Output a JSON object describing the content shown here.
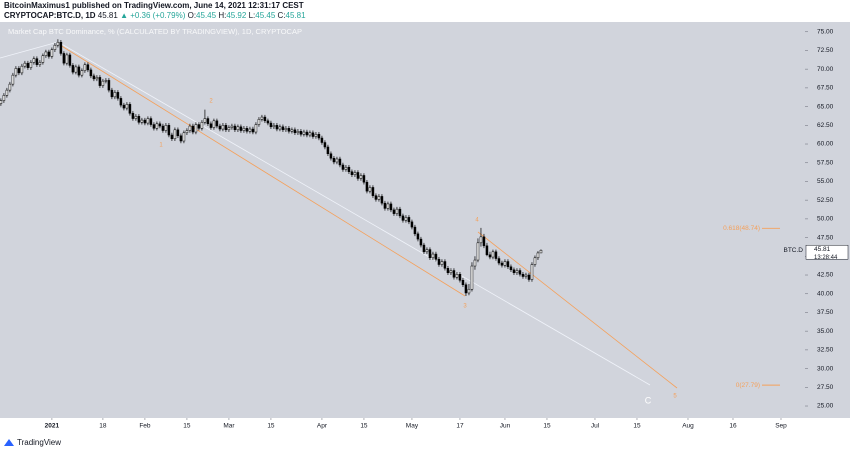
{
  "header": {
    "author_line": "BitcoinMaximus1 published on TradingView.com, June 14, 2021 12:31:17 CEST",
    "symbol": "CRYPTOCAP:BTC.D, 1D",
    "price": "45.81",
    "change": "▲ +0.36 (+0.79%)",
    "ohlc": [
      {
        "key": "O:",
        "value": "45.45"
      },
      {
        "key": "H:",
        "value": "45.92"
      },
      {
        "key": "L:",
        "value": "45.45"
      },
      {
        "key": "C:",
        "value": "45.81"
      }
    ]
  },
  "footer": {
    "brand": "TradingView"
  },
  "chart_data": {
    "type": "candlestick",
    "title": "Market Cap BTC Dominance, % (CALCULATED BY TRADINGVIEW), 1D, CRYPTOCAP",
    "up_color": "#ffffff",
    "down_color": "#000000",
    "wick_color": "#000000",
    "background": "#d1d4dc",
    "xlim": [
      -17.3,
      251
    ],
    "ylim": [
      23.8,
      76.3
    ],
    "xticks": [
      {
        "value": 0,
        "label": "2021"
      },
      {
        "value": 17,
        "label": "18"
      },
      {
        "value": 31,
        "label": "Feb"
      },
      {
        "value": 45,
        "label": "15"
      },
      {
        "value": 59,
        "label": "Mar"
      },
      {
        "value": 73,
        "label": "15"
      },
      {
        "value": 90,
        "label": "Apr"
      },
      {
        "value": 104,
        "label": "15"
      },
      {
        "value": 120,
        "label": "May"
      },
      {
        "value": 136,
        "label": "17"
      },
      {
        "value": 151,
        "label": "Jun"
      },
      {
        "value": 165,
        "label": "15"
      },
      {
        "value": 181,
        "label": "Jul"
      },
      {
        "value": 195,
        "label": "15"
      },
      {
        "value": 212,
        "label": "Aug"
      },
      {
        "value": 227,
        "label": "16"
      },
      {
        "value": 243,
        "label": "Sep"
      }
    ],
    "yticks": [
      {
        "value": 25,
        "label": "25.00"
      },
      {
        "value": 27.5,
        "label": "27.50"
      },
      {
        "value": 30,
        "label": "30.00"
      },
      {
        "value": 32.5,
        "label": "32.50"
      },
      {
        "value": 35,
        "label": "35.00"
      },
      {
        "value": 37.5,
        "label": "37.50"
      },
      {
        "value": 40,
        "label": "40.00"
      },
      {
        "value": 42.5,
        "label": "42.50"
      },
      {
        "value": 45,
        "label": "45.00"
      },
      {
        "value": 47.5,
        "label": "47.50"
      },
      {
        "value": 50,
        "label": "50.00"
      },
      {
        "value": 52.5,
        "label": "52.50"
      },
      {
        "value": 55,
        "label": "55.00"
      },
      {
        "value": 57.5,
        "label": "57.50"
      },
      {
        "value": 60,
        "label": "60.00"
      },
      {
        "value": 62.5,
        "label": "62.50"
      },
      {
        "value": 65,
        "label": "65.00"
      },
      {
        "value": 67.5,
        "label": "67.50"
      },
      {
        "value": 70,
        "label": "70.00"
      },
      {
        "value": 72.5,
        "label": "72.50"
      },
      {
        "value": 75,
        "label": "75.00"
      }
    ],
    "x": [
      -17,
      -16,
      -15,
      -14,
      -13,
      -12,
      -11,
      -10,
      -9,
      -8,
      -7,
      -6,
      -5,
      -4,
      -3,
      -2,
      -1,
      0,
      1,
      2,
      3,
      4,
      5,
      6,
      7,
      8,
      9,
      10,
      11,
      12,
      13,
      14,
      15,
      16,
      17,
      18,
      19,
      20,
      21,
      22,
      23,
      24,
      25,
      26,
      27,
      28,
      29,
      30,
      31,
      32,
      33,
      34,
      35,
      36,
      37,
      38,
      39,
      40,
      41,
      42,
      43,
      44,
      45,
      46,
      47,
      48,
      49,
      50,
      51,
      52,
      53,
      54,
      55,
      56,
      57,
      58,
      59,
      60,
      61,
      62,
      63,
      64,
      65,
      66,
      67,
      68,
      69,
      70,
      71,
      72,
      73,
      74,
      75,
      76,
      77,
      78,
      79,
      80,
      81,
      82,
      83,
      84,
      85,
      86,
      87,
      88,
      89,
      90,
      91,
      92,
      93,
      94,
      95,
      96,
      97,
      98,
      99,
      100,
      101,
      102,
      103,
      104,
      105,
      106,
      107,
      108,
      109,
      110,
      111,
      112,
      113,
      114,
      115,
      116,
      117,
      118,
      119,
      120,
      121,
      122,
      123,
      124,
      125,
      126,
      127,
      128,
      129,
      130,
      131,
      132,
      133,
      134,
      135,
      136,
      137,
      138,
      139,
      140,
      141,
      142,
      143,
      144,
      145,
      146,
      147,
      148,
      149,
      150,
      151,
      152,
      153,
      154,
      155,
      156,
      157,
      158,
      159,
      160,
      161,
      162,
      163
    ],
    "open": [
      65.4,
      65.8,
      66.5,
      67.2,
      68.0,
      69.2,
      70.1,
      69.5,
      70.4,
      70.8,
      70.2,
      70.9,
      71.4,
      70.6,
      70.9,
      71.8,
      72.3,
      71.7,
      72.6,
      73.2,
      73.6,
      72.1,
      70.8,
      71.9,
      70.5,
      69.6,
      70.3,
      69.2,
      69.8,
      70.6,
      69.9,
      69.1,
      68.7,
      68.9,
      67.8,
      68.4,
      68.5,
      67.2,
      66.3,
      66.9,
      66.1,
      65.2,
      64.8,
      65.3,
      64.1,
      63.4,
      63.7,
      62.9,
      63.2,
      62.8,
      63.4,
      62.6,
      62.1,
      62.7,
      62.4,
      61.8,
      62.5,
      61.2,
      60.7,
      61.9,
      61.1,
      60.4,
      61.5,
      61.8,
      62.4,
      61.6,
      62.6,
      62.1,
      62.9,
      63.4,
      62.7,
      62.2,
      63.1,
      62.4,
      62.0,
      62.5,
      61.9,
      62.2,
      62.4,
      61.9,
      62.3,
      61.8,
      62.1,
      61.7,
      62.0,
      61.6,
      62.6,
      63.3,
      63.6,
      63.1,
      62.8,
      62.3,
      62.5,
      62.0,
      62.3,
      61.9,
      62.1,
      61.7,
      61.9,
      61.5,
      61.7,
      61.3,
      61.6,
      61.2,
      61.5,
      61.0,
      61.3,
      60.8,
      60.2,
      59.6,
      58.7,
      58.1,
      57.6,
      58.0,
      57.2,
      56.6,
      56.9,
      56.3,
      55.9,
      56.2,
      55.4,
      55.8,
      54.9,
      53.7,
      54.2,
      53.1,
      52.6,
      53.0,
      52.1,
      51.4,
      52.0,
      51.2,
      50.7,
      51.3,
      50.4,
      49.8,
      50.2,
      49.6,
      48.9,
      48.0,
      47.3,
      46.5,
      45.6,
      45.9,
      44.8,
      45.3,
      44.6,
      43.9,
      44.3,
      43.4,
      42.8,
      43.1,
      42.2,
      42.6,
      41.8,
      41.2,
      40.1,
      40.6,
      43.7,
      44.5,
      46.8,
      47.6,
      46.4,
      45.2,
      44.9,
      45.6,
      44.7,
      44.1,
      43.8,
      44.3,
      43.6,
      43.2,
      42.8,
      43.1,
      42.6,
      42.3,
      42.5,
      41.9,
      43.9,
      44.8,
      45.45
    ],
    "high": [
      66.1,
      66.8,
      67.5,
      68.3,
      69.5,
      70.4,
      70.4,
      70.7,
      71.1,
      71.1,
      71.2,
      71.7,
      71.7,
      71.2,
      72.1,
      72.6,
      72.6,
      72.9,
      73.5,
      74.0,
      73.9,
      72.4,
      72.2,
      72.2,
      70.8,
      70.6,
      70.6,
      70.1,
      70.9,
      70.9,
      70.2,
      69.4,
      69.2,
      69.2,
      68.7,
      68.8,
      68.8,
      67.5,
      67.2,
      67.2,
      66.4,
      65.5,
      65.6,
      65.6,
      64.4,
      64.0,
      64.0,
      63.5,
      63.5,
      63.7,
      63.7,
      62.9,
      63.0,
      63.0,
      62.7,
      62.8,
      62.8,
      61.5,
      62.2,
      62.2,
      61.4,
      61.8,
      62.1,
      62.7,
      62.7,
      62.9,
      62.9,
      63.2,
      64.6,
      63.7,
      63.0,
      63.4,
      63.4,
      62.7,
      62.8,
      62.8,
      62.5,
      62.7,
      62.7,
      62.6,
      62.6,
      62.4,
      62.4,
      62.3,
      62.3,
      62.9,
      63.6,
      63.9,
      63.9,
      63.4,
      63.1,
      62.8,
      62.8,
      62.6,
      62.6,
      62.4,
      62.4,
      62.2,
      62.2,
      62.0,
      62.0,
      61.9,
      61.9,
      61.8,
      61.8,
      61.6,
      61.6,
      61.1,
      60.5,
      59.9,
      59.0,
      58.4,
      58.3,
      58.3,
      57.5,
      57.2,
      57.2,
      56.6,
      56.5,
      56.5,
      56.1,
      56.1,
      55.2,
      54.5,
      54.5,
      53.4,
      53.3,
      53.3,
      52.4,
      52.3,
      52.3,
      51.5,
      51.6,
      51.6,
      50.7,
      50.5,
      50.5,
      49.9,
      49.2,
      48.3,
      47.6,
      46.8,
      46.2,
      46.2,
      45.6,
      45.6,
      44.9,
      44.6,
      44.6,
      43.7,
      43.4,
      43.4,
      42.9,
      42.9,
      42.1,
      41.5,
      41.3,
      44.2,
      45.0,
      47.4,
      48.8,
      48.0,
      46.8,
      45.6,
      45.9,
      45.9,
      45.0,
      44.4,
      44.6,
      44.6,
      43.9,
      43.5,
      43.4,
      43.4,
      42.9,
      42.8,
      42.8,
      44.2,
      45.1,
      45.7,
      45.92
    ],
    "low": [
      65.1,
      65.5,
      66.2,
      66.9,
      67.7,
      68.9,
      69.2,
      69.2,
      70.1,
      69.9,
      69.9,
      70.6,
      70.3,
      70.3,
      70.6,
      71.5,
      71.4,
      71.4,
      72.3,
      72.9,
      71.8,
      70.5,
      70.5,
      70.2,
      69.3,
      69.3,
      68.9,
      68.9,
      69.5,
      69.6,
      68.8,
      68.4,
      68.4,
      67.5,
      67.5,
      68.1,
      66.9,
      66.0,
      66.0,
      65.8,
      64.9,
      64.5,
      64.5,
      63.8,
      63.1,
      63.1,
      62.6,
      62.6,
      62.5,
      62.5,
      62.3,
      61.8,
      61.8,
      62.1,
      61.5,
      61.5,
      60.9,
      60.4,
      60.4,
      60.8,
      60.1,
      60.1,
      61.2,
      61.5,
      61.3,
      61.3,
      61.8,
      61.8,
      62.6,
      62.4,
      61.9,
      61.9,
      62.1,
      61.7,
      61.7,
      61.6,
      61.6,
      61.9,
      61.6,
      61.6,
      61.5,
      61.5,
      61.4,
      61.4,
      61.3,
      61.3,
      62.3,
      63.0,
      62.8,
      62.5,
      62.0,
      62.0,
      61.7,
      61.7,
      61.6,
      61.6,
      61.4,
      61.4,
      61.2,
      61.2,
      61.0,
      61.0,
      60.9,
      60.9,
      60.7,
      60.7,
      60.5,
      59.9,
      59.3,
      58.4,
      57.8,
      57.3,
      57.3,
      56.9,
      56.3,
      56.3,
      56.0,
      55.6,
      55.6,
      55.1,
      55.1,
      54.6,
      53.4,
      53.4,
      52.8,
      52.3,
      52.3,
      51.8,
      51.1,
      51.1,
      50.9,
      50.4,
      50.4,
      50.1,
      49.5,
      49.5,
      49.3,
      48.6,
      47.7,
      47.0,
      46.2,
      45.3,
      45.3,
      44.5,
      44.5,
      44.3,
      43.6,
      43.6,
      43.1,
      42.5,
      42.5,
      41.9,
      41.9,
      41.5,
      40.9,
      39.7,
      39.8,
      40.3,
      43.2,
      44.2,
      46.3,
      46.1,
      45.0,
      44.6,
      44.6,
      44.4,
      43.8,
      43.5,
      43.5,
      43.3,
      42.9,
      42.5,
      42.5,
      42.3,
      42.0,
      42.0,
      41.6,
      41.6,
      43.6,
      44.5,
      45.45
    ],
    "close": [
      65.8,
      66.5,
      67.2,
      68.0,
      69.2,
      70.1,
      69.5,
      70.4,
      70.8,
      70.2,
      70.9,
      71.4,
      70.6,
      70.9,
      71.8,
      72.3,
      71.7,
      72.6,
      73.2,
      73.6,
      72.1,
      70.8,
      71.9,
      70.5,
      69.6,
      70.3,
      69.2,
      69.8,
      70.6,
      69.9,
      69.1,
      68.7,
      68.9,
      67.8,
      68.4,
      68.5,
      67.2,
      66.3,
      66.9,
      66.1,
      65.2,
      64.8,
      65.3,
      64.1,
      63.4,
      63.7,
      62.9,
      63.2,
      62.8,
      63.4,
      62.6,
      62.1,
      62.7,
      62.4,
      61.8,
      62.5,
      61.2,
      60.7,
      61.9,
      61.1,
      60.4,
      61.5,
      61.8,
      62.4,
      61.6,
      62.6,
      62.1,
      62.9,
      63.4,
      62.7,
      62.2,
      63.1,
      62.4,
      62.0,
      62.5,
      61.9,
      62.2,
      62.4,
      61.9,
      62.3,
      61.8,
      62.1,
      61.7,
      62.0,
      61.6,
      62.6,
      63.3,
      63.6,
      63.1,
      62.8,
      62.3,
      62.5,
      62.0,
      62.3,
      61.9,
      62.1,
      61.7,
      61.9,
      61.5,
      61.7,
      61.3,
      61.6,
      61.2,
      61.5,
      61.0,
      61.3,
      60.8,
      60.2,
      59.6,
      58.7,
      58.1,
      57.6,
      58.0,
      57.2,
      56.6,
      56.9,
      56.3,
      55.9,
      56.2,
      55.4,
      55.8,
      54.9,
      53.7,
      54.2,
      53.1,
      52.6,
      53.0,
      52.1,
      51.4,
      52.0,
      51.2,
      50.7,
      51.3,
      50.4,
      49.8,
      50.2,
      49.6,
      48.9,
      48.0,
      47.3,
      46.5,
      45.6,
      45.9,
      44.8,
      45.3,
      44.6,
      43.9,
      44.3,
      43.4,
      42.8,
      43.1,
      42.2,
      42.6,
      41.8,
      41.2,
      40.1,
      40.6,
      43.7,
      44.5,
      46.8,
      47.6,
      46.4,
      45.2,
      44.9,
      45.6,
      44.7,
      44.1,
      43.8,
      44.3,
      43.6,
      43.2,
      42.8,
      43.1,
      42.6,
      42.3,
      42.5,
      41.9,
      43.9,
      44.8,
      45.45,
      45.81
    ],
    "annotations": [
      "1",
      "2",
      "3",
      "4",
      "5",
      "C"
    ],
    "fib_levels": [
      {
        "value": 48.74,
        "label": "0.618(48.74)",
        "color": "#f5a05a"
      },
      {
        "value": 27.79,
        "label": "0(27.79)",
        "color": "#f5a05a"
      }
    ],
    "price_tag": {
      "symbol": "BTC.D",
      "value": 45.81,
      "countdown": "13:28:44"
    }
  }
}
